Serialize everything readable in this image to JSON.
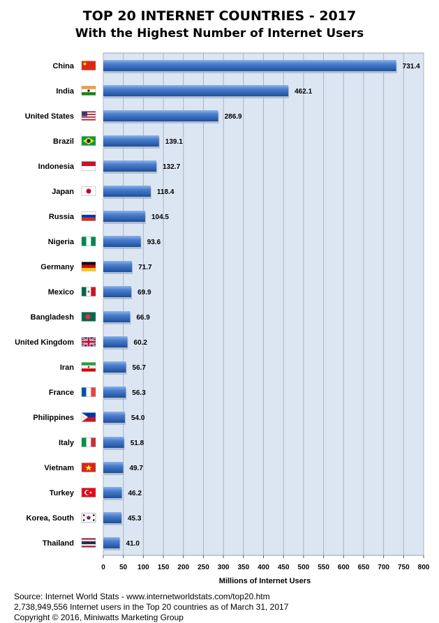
{
  "chart_data": {
    "type": "bar",
    "orientation": "horizontal",
    "title": "TOP 20 INTERNET COUNTRIES  - 2017",
    "subtitle": "With the Highest Number of Internet Users",
    "xlabel": "Millions of Internet Users",
    "ylabel": "",
    "xlim": [
      0,
      800
    ],
    "xticks": [
      0,
      50,
      100,
      150,
      200,
      250,
      300,
      350,
      400,
      450,
      500,
      550,
      600,
      650,
      700,
      750,
      800
    ],
    "grid": true,
    "categories": [
      "China",
      "India",
      "United States",
      "Brazil",
      "Indonesia",
      "Japan",
      "Russia",
      "Nigeria",
      "Germany",
      "Mexico",
      "Bangladesh",
      "United Kingdom",
      "Iran",
      "France",
      "Philippines",
      "Italy",
      "Vietnam",
      "Turkey",
      "Korea, South",
      "Thailand"
    ],
    "values": [
      731.4,
      462.1,
      286.9,
      139.1,
      132.7,
      118.4,
      104.5,
      93.6,
      71.7,
      69.9,
      66.9,
      60.2,
      56.7,
      56.3,
      54.0,
      51.8,
      49.7,
      46.2,
      45.3,
      41.0
    ],
    "value_labels": [
      "731.4",
      "462.1",
      "286.9",
      "139.1",
      "132.7",
      "118.4",
      "104.5",
      "93.6",
      "71.7",
      "69.9",
      "66.9",
      "60.2",
      "56.7",
      "56.3",
      "54.0",
      "51.8",
      "49.7",
      "46.2",
      "45.3",
      "41.0"
    ],
    "bar_color": "#3a6ebd",
    "plot_background": "#dce6f2"
  },
  "flags": [
    "china-flag-icon",
    "india-flag-icon",
    "united-states-flag-icon",
    "brazil-flag-icon",
    "indonesia-flag-icon",
    "japan-flag-icon",
    "russia-flag-icon",
    "nigeria-flag-icon",
    "germany-flag-icon",
    "mexico-flag-icon",
    "bangladesh-flag-icon",
    "united-kingdom-flag-icon",
    "iran-flag-icon",
    "france-flag-icon",
    "philippines-flag-icon",
    "italy-flag-icon",
    "vietnam-flag-icon",
    "turkey-flag-icon",
    "korea-south-flag-icon",
    "thailand-flag-icon"
  ],
  "footer": {
    "source": "Source: Internet World Stats  -  www.internetworldstats.com/top20.htm",
    "summary": "2,738,949,556 Internet users in the Top 20 countries as of March 31, 2017",
    "copyright": "Copyright © 2016, Miniwatts Marketing Group"
  }
}
